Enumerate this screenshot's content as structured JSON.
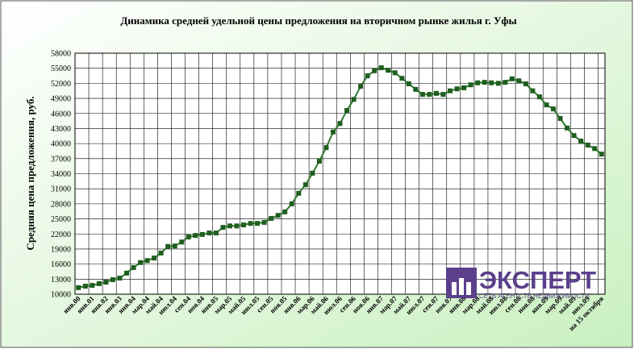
{
  "chart_data": {
    "type": "line",
    "title": "Динамика средней удельной цены предложения на вторичном рынке жилья г. Уфы",
    "y_label": "Средняя цена предложения, руб.",
    "logo": {
      "name": "ЭКСПЕРТ",
      "tagline": "СЕТЬ АГЕНТСТВ НЕДВИЖИМОСТИ"
    },
    "categories": [
      "янв.00",
      null,
      "янв.01",
      null,
      "янв.02",
      null,
      "янв.03",
      null,
      "янв.04",
      null,
      "мар.04",
      null,
      "май.04",
      null,
      "июл.04",
      null,
      "сен.04",
      null,
      "ноя.04",
      null,
      "янв.05",
      null,
      "мар.05",
      null,
      "май.05",
      null,
      "июл.05",
      null,
      "сен.05",
      null,
      "ноя.05",
      null,
      "янв.06",
      null,
      "мар.06",
      null,
      "май.06",
      null,
      "июл.06",
      null,
      "сен.06",
      null,
      "ноя.06",
      null,
      "янв.07",
      null,
      "мар.07",
      null,
      "май.07",
      null,
      "июл.07",
      null,
      "сен.07",
      null,
      "ноя.07",
      null,
      "янв.08",
      null,
      "мар.08",
      null,
      "май.08",
      null,
      "июл.08",
      null,
      "сен.08",
      null,
      "ноя.08",
      null,
      "янв.09",
      null,
      "мар.09",
      null,
      "май.09",
      null,
      "июл.09",
      null,
      "на 15 октября"
    ],
    "series": [
      {
        "name": "Средняя цена",
        "color": "#2e7a2e",
        "marker_color": "#1e5e1e",
        "values": [
          11300,
          11600,
          11750,
          12100,
          12400,
          12900,
          13200,
          14200,
          15300,
          16300,
          16700,
          17200,
          18200,
          19500,
          19600,
          20400,
          21400,
          21700,
          21900,
          22200,
          22200,
          23300,
          23600,
          23600,
          23800,
          24100,
          24100,
          24300,
          25100,
          25700,
          26400,
          28000,
          30100,
          31800,
          34100,
          36500,
          39200,
          42300,
          44000,
          46600,
          48800,
          51400,
          53500,
          54500,
          55100,
          54600,
          54100,
          53000,
          51900,
          50800,
          49800,
          49800,
          50000,
          49800,
          50500,
          50900,
          51100,
          51700,
          52100,
          52200,
          52100,
          52000,
          52200,
          52900,
          52500,
          51900,
          50500,
          49300,
          47700,
          46900,
          45000,
          43100,
          41600,
          40500,
          39700,
          39000,
          37900
        ]
      }
    ],
    "ylim": [
      10000,
      58000
    ],
    "yticks": [
      10000,
      13000,
      16000,
      19000,
      22000,
      25000,
      28000,
      31000,
      34000,
      37000,
      40000,
      43000,
      46000,
      49000,
      52000,
      55000,
      58000
    ],
    "grid": true
  }
}
